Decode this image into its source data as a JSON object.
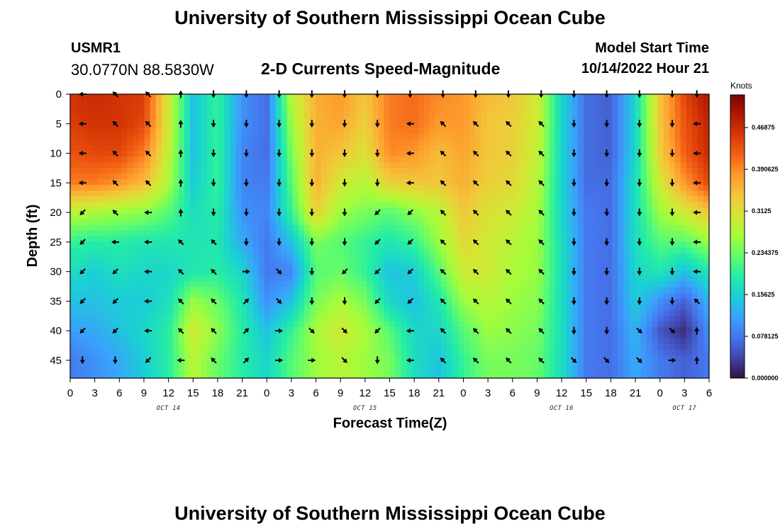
{
  "header": {
    "title": "University of Southern Mississippi Ocean Cube",
    "station_id": "USMR1",
    "station_coords": "30.0770N  88.5830W",
    "chart_title": "2-D Currents Speed-Magnitude",
    "model_label": "Model Start Time",
    "model_value": "10/14/2022 Hour 21"
  },
  "footer": {
    "title": "University of Southern Mississippi Ocean Cube"
  },
  "chart_data": {
    "type": "heatmap",
    "title": "2-D Currents Speed-Magnitude",
    "xlabel": "Forecast Time(Z)",
    "ylabel": "Depth (ft)",
    "ylim": [
      0,
      48
    ],
    "x_tick_labels": [
      "0",
      "3",
      "6",
      "9",
      "12",
      "15",
      "18",
      "21",
      "0",
      "3",
      "6",
      "9",
      "12",
      "15",
      "18",
      "21",
      "0",
      "3",
      "6",
      "9",
      "12",
      "15",
      "18",
      "21",
      "0",
      "3",
      "6"
    ],
    "y_tick_labels": [
      "0",
      "5",
      "10",
      "15",
      "20",
      "25",
      "30",
      "35",
      "40",
      "45"
    ],
    "date_labels": [
      "OCT 14",
      "OCT 15",
      "OCT 16",
      "OCT 17"
    ],
    "date_label_hours": [
      12,
      36,
      60,
      75
    ],
    "colorbar": {
      "unit": "Knots",
      "tick_labels": [
        "0.46875",
        "0.390625",
        "0.3125",
        "0.234375",
        "0.15625",
        "0.078125",
        "0.000000"
      ],
      "tick_values": [
        0.46875,
        0.390625,
        0.3125,
        0.234375,
        0.15625,
        0.078125,
        0.0
      ],
      "range": [
        0,
        0.53
      ],
      "colors": [
        "#30123b",
        "#4145ab",
        "#4675ed",
        "#39a2fc",
        "#1bcfd4",
        "#24eca6",
        "#61fc6c",
        "#a4fc3b",
        "#d1e834",
        "#f3c63a",
        "#fe9b2d",
        "#f36315",
        "#d93806",
        "#b11901",
        "#7a0402"
      ]
    },
    "forecast_hours": [
      0,
      3,
      6,
      9,
      12,
      15,
      18,
      21,
      24,
      27,
      30,
      33,
      36,
      39,
      42,
      45,
      48,
      51,
      54,
      57,
      60,
      63,
      66,
      69,
      72,
      75,
      78
    ],
    "depths_ft": [
      0,
      5,
      10,
      15,
      20,
      25,
      30,
      35,
      40,
      45
    ],
    "speed_knots": [
      [
        0.46,
        0.47,
        0.46,
        0.45,
        0.3,
        0.14,
        0.2,
        0.1,
        0.07,
        0.28,
        0.36,
        0.38,
        0.34,
        0.4,
        0.41,
        0.39,
        0.38,
        0.35,
        0.34,
        0.3,
        0.16,
        0.07,
        0.06,
        0.16,
        0.34,
        0.44,
        0.5
      ],
      [
        0.45,
        0.46,
        0.46,
        0.44,
        0.3,
        0.14,
        0.2,
        0.1,
        0.07,
        0.26,
        0.36,
        0.37,
        0.33,
        0.4,
        0.41,
        0.38,
        0.38,
        0.34,
        0.33,
        0.3,
        0.16,
        0.07,
        0.06,
        0.16,
        0.34,
        0.43,
        0.48
      ],
      [
        0.43,
        0.44,
        0.44,
        0.4,
        0.29,
        0.14,
        0.2,
        0.09,
        0.07,
        0.24,
        0.36,
        0.34,
        0.31,
        0.39,
        0.38,
        0.35,
        0.37,
        0.34,
        0.33,
        0.29,
        0.16,
        0.07,
        0.06,
        0.16,
        0.33,
        0.42,
        0.47
      ],
      [
        0.4,
        0.4,
        0.38,
        0.35,
        0.27,
        0.15,
        0.2,
        0.09,
        0.08,
        0.22,
        0.36,
        0.3,
        0.28,
        0.33,
        0.34,
        0.34,
        0.36,
        0.33,
        0.32,
        0.28,
        0.16,
        0.07,
        0.07,
        0.17,
        0.3,
        0.38,
        0.44
      ],
      [
        0.28,
        0.27,
        0.26,
        0.25,
        0.22,
        0.17,
        0.19,
        0.1,
        0.09,
        0.2,
        0.33,
        0.26,
        0.24,
        0.22,
        0.25,
        0.28,
        0.34,
        0.31,
        0.3,
        0.27,
        0.16,
        0.08,
        0.07,
        0.17,
        0.26,
        0.3,
        0.34
      ],
      [
        0.2,
        0.19,
        0.19,
        0.18,
        0.18,
        0.18,
        0.18,
        0.12,
        0.08,
        0.14,
        0.24,
        0.22,
        0.2,
        0.18,
        0.2,
        0.26,
        0.32,
        0.3,
        0.28,
        0.26,
        0.17,
        0.08,
        0.07,
        0.17,
        0.22,
        0.22,
        0.26
      ],
      [
        0.17,
        0.15,
        0.17,
        0.16,
        0.16,
        0.18,
        0.19,
        0.16,
        0.08,
        0.09,
        0.22,
        0.23,
        0.2,
        0.14,
        0.15,
        0.22,
        0.3,
        0.3,
        0.27,
        0.26,
        0.17,
        0.08,
        0.07,
        0.16,
        0.18,
        0.14,
        0.18
      ],
      [
        0.14,
        0.14,
        0.15,
        0.15,
        0.17,
        0.26,
        0.23,
        0.18,
        0.1,
        0.14,
        0.24,
        0.27,
        0.24,
        0.16,
        0.14,
        0.18,
        0.26,
        0.28,
        0.26,
        0.25,
        0.17,
        0.08,
        0.07,
        0.15,
        0.1,
        0.06,
        0.13
      ],
      [
        0.11,
        0.12,
        0.14,
        0.16,
        0.19,
        0.3,
        0.25,
        0.19,
        0.14,
        0.2,
        0.27,
        0.3,
        0.27,
        0.22,
        0.16,
        0.16,
        0.22,
        0.26,
        0.25,
        0.24,
        0.17,
        0.08,
        0.07,
        0.13,
        0.05,
        0.02,
        0.1
      ],
      [
        0.08,
        0.1,
        0.12,
        0.15,
        0.19,
        0.28,
        0.23,
        0.19,
        0.16,
        0.22,
        0.26,
        0.28,
        0.26,
        0.24,
        0.17,
        0.14,
        0.2,
        0.24,
        0.24,
        0.23,
        0.17,
        0.08,
        0.07,
        0.12,
        0.08,
        0.06,
        0.08
      ]
    ],
    "arrow_hours": [
      1.5,
      5.5,
      9.5,
      13.5,
      17.5,
      21.5,
      25.5,
      29.5,
      33.5,
      37.5,
      41.5,
      45.5,
      49.5,
      53.5,
      57.5,
      61.5,
      65.5,
      69.5,
      73.5,
      76.5
    ],
    "arrow_depths_ft": [
      0,
      5,
      10,
      15,
      20,
      25,
      30,
      35,
      40,
      45
    ],
    "arrow_dir_deg": [
      [
        270,
        315,
        315,
        0,
        180,
        180,
        180,
        180,
        180,
        180,
        180,
        180,
        180,
        180,
        180,
        180,
        180,
        180,
        180,
        180
      ],
      [
        270,
        315,
        315,
        0,
        180,
        180,
        180,
        180,
        180,
        180,
        270,
        315,
        315,
        315,
        315,
        180,
        180,
        180,
        180,
        270
      ],
      [
        270,
        315,
        315,
        0,
        180,
        180,
        180,
        180,
        180,
        180,
        270,
        315,
        315,
        315,
        315,
        180,
        180,
        180,
        180,
        270
      ],
      [
        270,
        315,
        315,
        0,
        180,
        180,
        180,
        180,
        180,
        180,
        270,
        315,
        315,
        315,
        315,
        180,
        180,
        180,
        180,
        270
      ],
      [
        225,
        315,
        270,
        0,
        180,
        180,
        180,
        180,
        180,
        225,
        225,
        315,
        315,
        315,
        315,
        180,
        180,
        180,
        180,
        270
      ],
      [
        225,
        270,
        270,
        315,
        315,
        180,
        180,
        180,
        180,
        225,
        225,
        315,
        315,
        315,
        315,
        180,
        180,
        180,
        180,
        270
      ],
      [
        225,
        225,
        270,
        315,
        315,
        90,
        135,
        180,
        225,
        225,
        225,
        315,
        315,
        315,
        315,
        180,
        180,
        180,
        180,
        270
      ],
      [
        225,
        225,
        270,
        315,
        315,
        45,
        135,
        180,
        180,
        225,
        225,
        315,
        315,
        315,
        315,
        180,
        180,
        180,
        180,
        315
      ],
      [
        225,
        225,
        270,
        315,
        315,
        45,
        90,
        135,
        135,
        225,
        270,
        315,
        315,
        315,
        315,
        180,
        180,
        135,
        135,
        0
      ],
      [
        180,
        180,
        225,
        270,
        315,
        45,
        90,
        90,
        135,
        180,
        270,
        315,
        315,
        315,
        315,
        135,
        135,
        135,
        90,
        0
      ]
    ]
  }
}
